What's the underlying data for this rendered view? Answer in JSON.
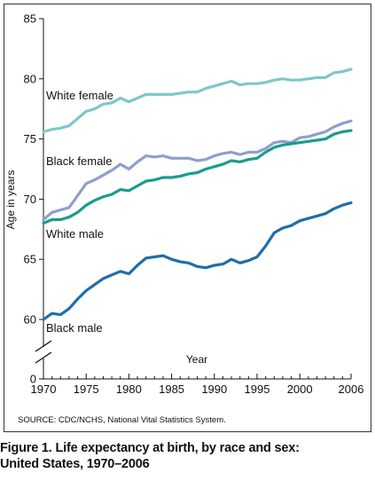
{
  "chart_data": {
    "type": "line",
    "xlabel": "Year",
    "ylabel": "Age in years",
    "x_ticks": [
      1970,
      1975,
      1980,
      1985,
      1990,
      1995,
      2000,
      2006
    ],
    "y_ticks": [
      85,
      80,
      75,
      70,
      65,
      60,
      0
    ],
    "y_break": "between 0 and 60",
    "xlim": [
      1970,
      2006
    ],
    "ylim": [
      58,
      85
    ],
    "grid": false,
    "legend": "inline labels",
    "x": [
      1970,
      1971,
      1972,
      1973,
      1974,
      1975,
      1976,
      1977,
      1978,
      1979,
      1980,
      1981,
      1982,
      1983,
      1984,
      1985,
      1986,
      1987,
      1988,
      1989,
      1990,
      1991,
      1992,
      1993,
      1994,
      1995,
      1996,
      1997,
      1998,
      1999,
      2000,
      2001,
      2002,
      2003,
      2004,
      2005,
      2006
    ],
    "series": [
      {
        "name": "White female",
        "color": "#7ec8c6",
        "values": [
          75.6,
          75.8,
          75.9,
          76.1,
          76.7,
          77.3,
          77.5,
          77.9,
          78.0,
          78.4,
          78.1,
          78.4,
          78.7,
          78.7,
          78.7,
          78.7,
          78.8,
          78.9,
          78.9,
          79.2,
          79.4,
          79.6,
          79.8,
          79.5,
          79.6,
          79.6,
          79.7,
          79.9,
          80.0,
          79.9,
          79.9,
          80.0,
          80.1,
          80.1,
          80.5,
          80.6,
          80.8
        ]
      },
      {
        "name": "Black female",
        "color": "#8e9fcf",
        "values": [
          68.3,
          68.9,
          69.1,
          69.3,
          70.3,
          71.3,
          71.6,
          72.0,
          72.4,
          72.9,
          72.5,
          73.1,
          73.6,
          73.5,
          73.6,
          73.4,
          73.4,
          73.4,
          73.2,
          73.3,
          73.6,
          73.8,
          73.9,
          73.7,
          73.9,
          73.9,
          74.2,
          74.7,
          74.8,
          74.7,
          75.1,
          75.2,
          75.4,
          75.6,
          76.0,
          76.3,
          76.5
        ]
      },
      {
        "name": "White male",
        "color": "#1a9c8c",
        "values": [
          68.0,
          68.3,
          68.3,
          68.5,
          68.9,
          69.5,
          69.9,
          70.2,
          70.4,
          70.8,
          70.7,
          71.1,
          71.5,
          71.6,
          71.8,
          71.8,
          71.9,
          72.1,
          72.2,
          72.5,
          72.7,
          72.9,
          73.2,
          73.1,
          73.3,
          73.4,
          73.9,
          74.3,
          74.5,
          74.6,
          74.7,
          74.8,
          74.9,
          75.0,
          75.4,
          75.6,
          75.7
        ]
      },
      {
        "name": "Black male",
        "color": "#1f6ea8",
        "values": [
          60.0,
          60.5,
          60.4,
          60.9,
          61.7,
          62.4,
          62.9,
          63.4,
          63.7,
          64.0,
          63.8,
          64.5,
          65.1,
          65.2,
          65.3,
          65.0,
          64.8,
          64.7,
          64.4,
          64.3,
          64.5,
          64.6,
          65.0,
          64.7,
          64.9,
          65.2,
          66.1,
          67.2,
          67.6,
          67.8,
          68.2,
          68.4,
          68.6,
          68.8,
          69.2,
          69.5,
          69.7
        ]
      }
    ],
    "source": "SOURCE: CDC/NCHS, National Vital Statistics System.",
    "caption_line1": "Figure 1. Life expectancy at birth, by race and sex:",
    "caption_line2": "United States, 1970–2006"
  }
}
